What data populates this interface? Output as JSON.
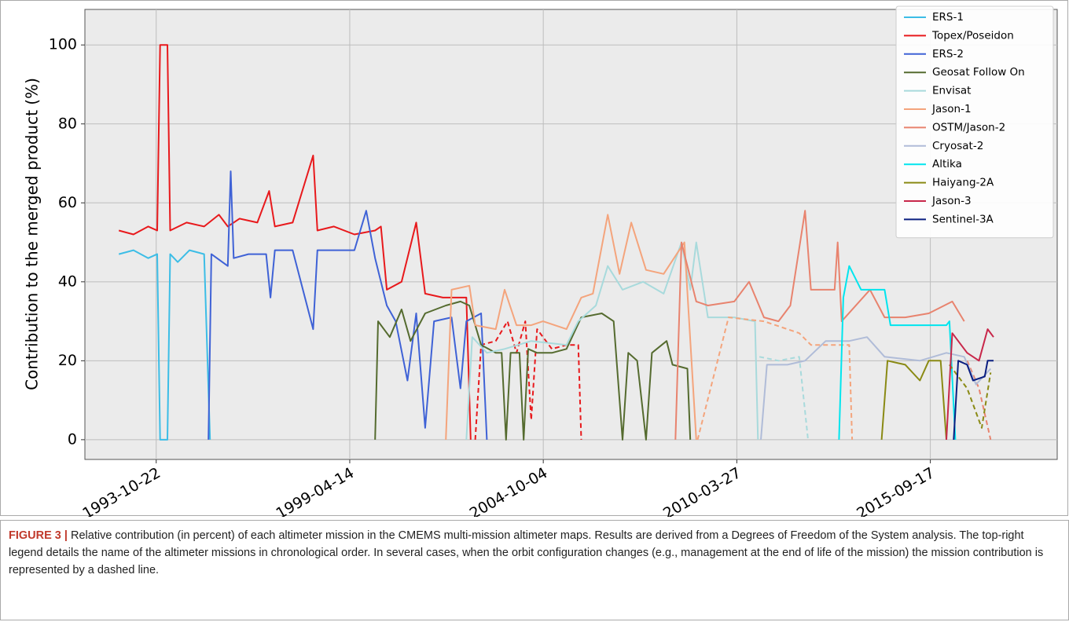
{
  "chart_data": {
    "type": "line",
    "y_label": "Contribution to the merged product (%)",
    "xlim": [
      "1991-10-16",
      "2019-04-20"
    ],
    "xticks": [
      "1993-10-22",
      "1999-04-14",
      "2004-10-04",
      "2010-03-27",
      "2015-09-17"
    ],
    "ylim": [
      -5,
      109
    ],
    "yticks": [
      0,
      20,
      40,
      60,
      80,
      100
    ],
    "grid": true,
    "legend": "upper right",
    "series": [
      {
        "name": "ERS-1",
        "color": "#3cbde6",
        "x": [
          "1992-10-01",
          "1993-03-01",
          "1993-08-01",
          "1993-11-01",
          "1993-12-01",
          "1994-02-15",
          "1994-03-15",
          "1994-06-01",
          "1994-10-01",
          "1995-03-01",
          "1995-05-01"
        ],
        "values": [
          47,
          48,
          46,
          47,
          0,
          0,
          47,
          45,
          48,
          47,
          0
        ]
      },
      {
        "name": "Topex/Poseidon",
        "color": "#e8191c",
        "x": [
          "1992-10-01",
          "1993-03-01",
          "1993-08-01",
          "1993-11-01",
          "1993-12-01",
          "1994-02-15",
          "1994-03-15",
          "1994-09-01",
          "1995-03-01",
          "1995-08-01",
          "1995-11-01",
          "1996-03-01",
          "1996-09-01",
          "1997-01-01",
          "1997-03-01",
          "1997-09-01",
          "1998-04-01",
          "1998-05-15",
          "1998-11-01",
          "1999-06-01",
          "2000-01-01",
          "2000-03-01",
          "2000-05-01",
          "2000-10-01",
          "2001-03-01",
          "2001-06-01",
          "2001-12-01",
          "2002-06-01",
          "2002-08-01",
          "2002-09-15"
        ],
        "values": [
          53,
          52,
          54,
          53,
          100,
          100,
          53,
          55,
          54,
          57,
          54,
          56,
          55,
          63,
          54,
          55,
          72,
          53,
          54,
          52,
          53,
          54,
          38,
          40,
          55,
          37,
          36,
          36,
          36,
          0
        ]
      },
      {
        "color": "#e8191c",
        "dashed": true,
        "x": [
          "2002-11-01",
          "2003-01-01",
          "2003-06-01",
          "2003-10-01",
          "2004-01-01",
          "2004-04-01",
          "2004-06-01",
          "2004-08-01",
          "2005-01-01",
          "2005-06-01",
          "2005-10-01",
          "2005-11-01"
        ],
        "values": [
          0,
          24,
          25,
          30,
          22,
          30,
          5,
          28,
          23,
          24,
          24,
          0
        ]
      },
      {
        "name": "ERS-2",
        "color": "#3f62d6",
        "x": [
          "1995-04-15",
          "1995-05-15",
          "1995-11-01",
          "1995-12-01",
          "1996-01-01",
          "1996-06-01",
          "1996-12-01",
          "1997-01-15",
          "1997-03-01",
          "1997-09-01",
          "1998-04-01",
          "1998-05-15",
          "1998-12-01",
          "1999-06-01",
          "1999-10-01",
          "2000-01-01",
          "2000-05-01",
          "2000-08-01",
          "2000-12-01",
          "2001-03-01",
          "2001-06-01",
          "2001-09-01",
          "2002-03-01",
          "2002-06-01",
          "2002-08-01",
          "2003-01-01",
          "2003-03-01"
        ],
        "values": [
          0,
          47,
          44,
          68,
          46,
          47,
          47,
          36,
          48,
          48,
          28,
          48,
          48,
          48,
          58,
          46,
          34,
          30,
          15,
          32,
          3,
          30,
          31,
          13,
          30,
          32,
          0
        ]
      },
      {
        "name": "Geosat Follow On",
        "color": "#556b2f",
        "x": [
          "2000-01-01",
          "2000-02-01",
          "2000-06-01",
          "2000-10-01",
          "2001-01-01",
          "2001-06-01",
          "2002-01-01",
          "2002-06-01",
          "2002-09-01",
          "2003-01-01",
          "2003-06-01",
          "2003-08-01",
          "2003-09-15",
          "2003-11-01",
          "2004-02-01",
          "2004-03-15",
          "2004-05-01",
          "2004-08-01",
          "2005-01-01",
          "2005-06-01",
          "2005-11-01",
          "2006-06-01",
          "2006-10-01",
          "2007-01-01",
          "2007-03-01",
          "2007-06-01",
          "2007-09-01",
          "2007-11-01",
          "2008-04-01",
          "2008-06-01",
          "2008-11-01",
          "2008-12-01"
        ],
        "values": [
          0,
          30,
          26,
          33,
          25,
          32,
          34,
          35,
          34,
          24,
          22,
          22,
          0,
          22,
          22,
          0,
          23,
          22,
          22,
          23,
          31,
          32,
          30,
          0,
          22,
          20,
          0,
          22,
          25,
          19,
          18,
          0
        ]
      },
      {
        "name": "Envisat",
        "color": "#a8dadc",
        "x": [
          "2002-08-01",
          "2002-10-01",
          "2003-03-01",
          "2003-09-01",
          "2004-06-01",
          "2005-06-01",
          "2005-10-01",
          "2006-04-01",
          "2006-08-01",
          "2007-01-01",
          "2007-08-01",
          "2008-03-01",
          "2008-09-01",
          "2008-12-01",
          "2009-02-01",
          "2009-06-01",
          "2010-03-01",
          "2010-10-01",
          "2010-11-01"
        ],
        "values": [
          0,
          26,
          22,
          23,
          25,
          24,
          30,
          34,
          44,
          38,
          40,
          37,
          50,
          38,
          50,
          31,
          31,
          30,
          0
        ]
      },
      {
        "color": "#a8dadc",
        "dashed": true,
        "x": [
          "2010-11-15",
          "2011-06-01",
          "2012-01-01",
          "2012-04-01"
        ],
        "values": [
          21,
          20,
          21,
          0
        ]
      },
      {
        "name": "Jason-1",
        "color": "#f4a47c",
        "x": [
          "2002-01-01",
          "2002-03-01",
          "2002-09-01",
          "2002-11-01",
          "2003-06-01",
          "2003-09-01",
          "2004-01-01",
          "2004-06-01",
          "2004-10-01",
          "2005-06-01",
          "2005-11-01",
          "2006-03-01",
          "2006-08-01",
          "2006-12-01",
          "2007-04-01",
          "2007-09-01",
          "2008-03-01",
          "2008-10-01",
          "2009-02-01"
        ],
        "values": [
          0,
          38,
          39,
          29,
          28,
          38,
          29,
          29,
          30,
          28,
          36,
          37,
          57,
          42,
          55,
          43,
          42,
          50,
          0
        ]
      },
      {
        "color": "#f4a47c",
        "dashed": true,
        "x": [
          "2009-02-15",
          "2010-01-01",
          "2011-01-01",
          "2012-01-01",
          "2012-05-01",
          "2013-06-01",
          "2013-07-01"
        ],
        "values": [
          0,
          31,
          30,
          27,
          24,
          24,
          0
        ]
      },
      {
        "name": "OSTM/Jason-2",
        "color": "#e8836e",
        "x": [
          "2008-07-01",
          "2008-09-01",
          "2009-02-01",
          "2009-06-01",
          "2010-03-01",
          "2010-08-01",
          "2011-01-01",
          "2011-06-01",
          "2011-10-01",
          "2012-03-01",
          "2012-05-01",
          "2013-01-01",
          "2013-02-01",
          "2013-03-15",
          "2014-01-01",
          "2014-06-01",
          "2015-01-01",
          "2015-09-01",
          "2016-05-01",
          "2016-09-01"
        ],
        "values": [
          0,
          50,
          35,
          34,
          35,
          40,
          31,
          30,
          34,
          58,
          38,
          38,
          50,
          30,
          38,
          31,
          31,
          32,
          35,
          30
        ]
      },
      {
        "color": "#e8836e",
        "dashed": true,
        "x": [
          "2016-10-01",
          "2017-02-01",
          "2017-06-01"
        ],
        "values": [
          20,
          13,
          0
        ]
      },
      {
        "name": "Cryosat-2",
        "color": "#b0bcd8",
        "x": [
          "2010-12-01",
          "2011-02-01",
          "2011-09-01",
          "2012-03-01",
          "2012-10-01",
          "2013-06-01",
          "2013-12-01",
          "2014-06-01",
          "2015-06-01",
          "2016-03-01",
          "2016-09-01",
          "2017-01-01",
          "2017-06-01"
        ],
        "values": [
          0,
          19,
          19,
          20,
          25,
          25,
          26,
          21,
          20,
          22,
          21,
          14,
          18
        ]
      },
      {
        "name": "Altika",
        "color": "#00e5ee",
        "x": [
          "2013-02-15",
          "2013-04-01",
          "2013-06-01",
          "2013-10-01",
          "2014-06-01",
          "2014-08-01",
          "2015-06-01",
          "2016-03-01",
          "2016-04-01",
          "2016-06-01"
        ],
        "values": [
          0,
          36,
          44,
          38,
          38,
          29,
          29,
          29,
          30,
          0
        ]
      },
      {
        "name": "Haiyang-2A",
        "color": "#8a8a14",
        "x": [
          "2014-05-01",
          "2014-07-01",
          "2015-01-01",
          "2015-06-01",
          "2015-09-01",
          "2016-01-01",
          "2016-03-01"
        ],
        "values": [
          0,
          20,
          19,
          15,
          20,
          20,
          0
        ]
      },
      {
        "color": "#8a8a14",
        "dashed": true,
        "x": [
          "2016-04-01",
          "2016-10-01",
          "2017-03-01",
          "2017-06-01"
        ],
        "values": [
          19,
          13,
          3,
          17
        ]
      },
      {
        "name": "Jason-3",
        "color": "#c8274a",
        "x": [
          "2016-03-01",
          "2016-05-01",
          "2016-10-01",
          "2017-02-01",
          "2017-05-01",
          "2017-07-01"
        ],
        "values": [
          0,
          27,
          22,
          20,
          28,
          26
        ]
      },
      {
        "name": "Sentinel-3A",
        "color": "#0a1e80",
        "x": [
          "2016-05-15",
          "2016-07-01",
          "2016-10-01",
          "2016-12-01",
          "2017-04-01",
          "2017-05-01",
          "2017-07-01"
        ],
        "values": [
          0,
          20,
          19,
          15,
          16,
          20,
          20
        ]
      }
    ]
  },
  "caption": {
    "label": "FIGURE 3 |",
    "text": "Relative contribution (in percent) of each altimeter mission in the CMEMS multi-mission altimeter maps. Results are derived from a Degrees of Freedom of the System analysis. The top-right legend details the name of the altimeter missions in chronological order. In several cases, when the orbit configuration changes (e.g., management at the end of life of the mission) the mission contribution is represented by a dashed line."
  }
}
